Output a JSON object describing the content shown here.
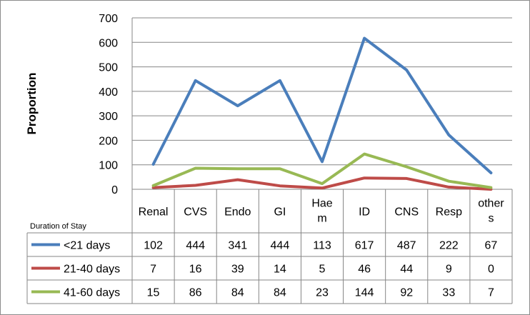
{
  "chart_data": {
    "type": "line",
    "ylabel": "Proportion",
    "ylim": [
      0,
      700
    ],
    "yticks": [
      0,
      100,
      200,
      300,
      400,
      500,
      600,
      700
    ],
    "grid": true,
    "categories": [
      "Renal",
      "CVS",
      "Endo",
      "GI",
      "Hae\nm",
      "ID",
      "CNS",
      "Resp",
      "other\ns"
    ],
    "table_header": "Duration of Stay",
    "series": [
      {
        "name": "<21 days",
        "color": "#4a7ebb",
        "values": [
          102,
          444,
          341,
          444,
          113,
          617,
          487,
          222,
          67
        ]
      },
      {
        "name": "21-40 days",
        "color": "#be4b48",
        "values": [
          7,
          16,
          39,
          14,
          5,
          46,
          44,
          9,
          0
        ]
      },
      {
        "name": "41-60 days",
        "color": "#98b954",
        "values": [
          15,
          86,
          84,
          84,
          23,
          144,
          92,
          33,
          7
        ]
      }
    ]
  }
}
